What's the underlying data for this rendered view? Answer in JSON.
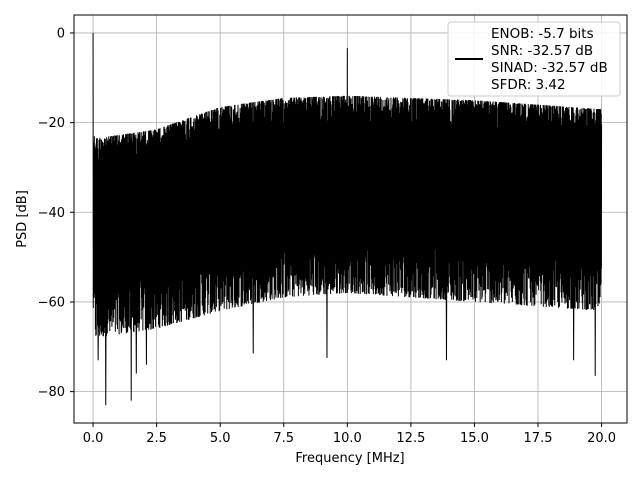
{
  "chart_data": {
    "type": "line",
    "title": "",
    "xlabel": "Frequency [MHz]",
    "ylabel": "PSD [dB]",
    "xlim": [
      -0.75,
      21.0
    ],
    "ylim": [
      -87.0,
      4.0
    ],
    "x_ticks": [
      0.0,
      2.5,
      5.0,
      7.5,
      10.0,
      12.5,
      15.0,
      17.5,
      20.0
    ],
    "x_tick_labels": [
      "0.0",
      "2.5",
      "5.0",
      "7.5",
      "10.0",
      "12.5",
      "15.0",
      "17.5",
      "20.0"
    ],
    "y_ticks": [
      0,
      -20,
      -40,
      -60,
      -80
    ],
    "y_tick_labels": [
      "0",
      "−20",
      "−40",
      "−60",
      "−80"
    ],
    "grid": true,
    "legend_position": "top-right",
    "line_color": "#000000",
    "series": [
      {
        "name": "",
        "noise_envelope": {
          "x": [
            0.0,
            0.1,
            2.5,
            5.0,
            7.5,
            10.0,
            12.5,
            15.0,
            17.5,
            20.0
          ],
          "upper": [
            -22.5,
            -23.5,
            -21.5,
            -16.5,
            -14.5,
            -14.0,
            -14.5,
            -15.0,
            -16.0,
            -17.0
          ],
          "lower": [
            -60.0,
            -66.0,
            -64.0,
            -60.0,
            -57.0,
            -56.0,
            -57.0,
            -58.0,
            -59.0,
            -60.0
          ]
        },
        "peaks": [
          {
            "x": 0.0,
            "y": 0.0
          },
          {
            "x": 10.0,
            "y": -3.4
          }
        ],
        "deep_dips": [
          {
            "x": 0.5,
            "y": -83.0
          },
          {
            "x": 1.5,
            "y": -82.0
          },
          {
            "x": 1.7,
            "y": -76.0
          },
          {
            "x": 0.2,
            "y": -73.0
          },
          {
            "x": 2.1,
            "y": -74.0
          },
          {
            "x": 9.2,
            "y": -72.5
          },
          {
            "x": 19.75,
            "y": -76.5
          },
          {
            "x": 6.3,
            "y": -71.5
          },
          {
            "x": 13.9,
            "y": -73.0
          },
          {
            "x": 18.9,
            "y": -73.0
          }
        ]
      }
    ],
    "legend_lines": [
      "ENOB: -5.7 bits",
      "SNR: -32.57 dB",
      "SINAD: -32.57 dB",
      "SFDR: 3.42"
    ]
  }
}
